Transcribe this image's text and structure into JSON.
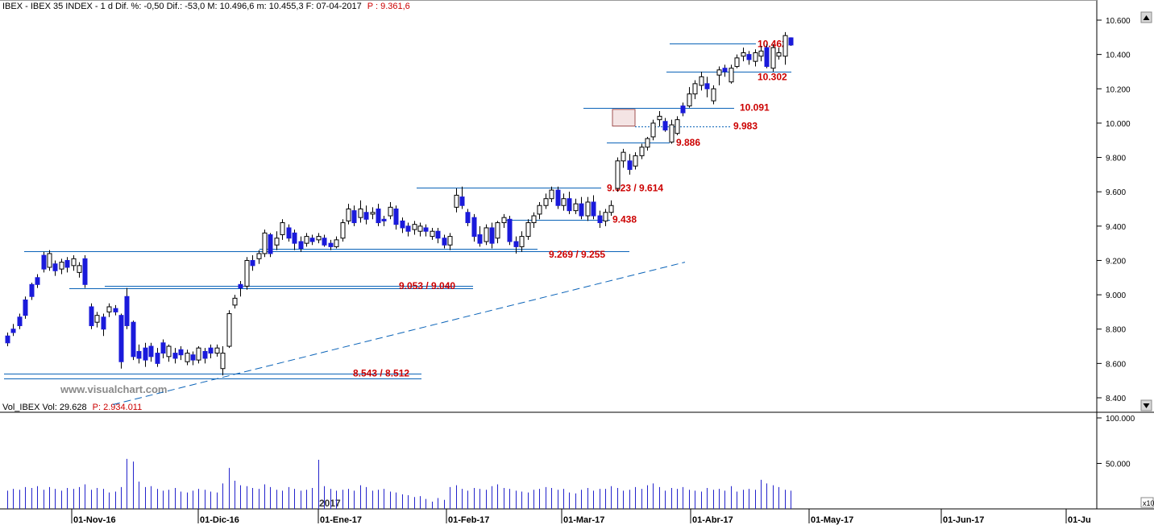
{
  "header": {
    "main": "IBEX - IBEX 35 INDEX - 1 d Dif. %: -0,50 Dif.: -53,0 M: 10.496,6 m: 10.455,3 F: 07-04-2017",
    "main_p": "P : 9.361,6",
    "vol": "Vol_IBEX Vol: 29.628",
    "vol_p": "P: 2.934.011"
  },
  "watermark": "www.visualchart.com",
  "year_marker": "2017",
  "scale_button": "x10",
  "colors": {
    "up": "#ffffff",
    "down": "#1a1adb",
    "line": "#0a63b8",
    "label": "#cc0000",
    "volume": "#2222cc"
  },
  "chart_data": {
    "type": "candlestick",
    "title": "IBEX - IBEX 35 INDEX - 1 d",
    "price_axis": {
      "ticks": [
        "10.600",
        "10.400",
        "10.200",
        "10.000",
        "9.800",
        "9.600",
        "9.400",
        "9.200",
        "9.000",
        "8.800",
        "8.600",
        "8.400"
      ],
      "range": [
        8400,
        10600
      ]
    },
    "volume_axis": {
      "ticks": [
        "100.000",
        "50.000"
      ],
      "range": [
        0,
        100000
      ]
    },
    "date_axis": [
      "01-Nov-16",
      "01-Dic-16",
      "01-Ene-17",
      "01-Feb-17",
      "01-Mar-17",
      "01-Abr-17",
      "01-May-17",
      "01-Jun-17",
      "01-Ju"
    ],
    "candles": [
      [
        8760,
        8720,
        8780,
        8700
      ],
      [
        8800,
        8780,
        8830,
        8760
      ],
      [
        8870,
        8820,
        8890,
        8800
      ],
      [
        8970,
        8880,
        8990,
        8860
      ],
      [
        9060,
        8990,
        9070,
        8970
      ],
      [
        9100,
        9060,
        9120,
        9040
      ],
      [
        9230,
        9150,
        9250,
        9130
      ],
      [
        9160,
        9240,
        9260,
        9140
      ],
      [
        9180,
        9140,
        9200,
        9110
      ],
      [
        9150,
        9190,
        9210,
        9120
      ],
      [
        9200,
        9160,
        9220,
        9130
      ],
      [
        9170,
        9210,
        9230,
        9140
      ],
      [
        9130,
        9170,
        9190,
        9100
      ],
      [
        9210,
        9060,
        9230,
        9040
      ],
      [
        8930,
        8820,
        8950,
        8800
      ],
      [
        8840,
        8880,
        8900,
        8810
      ],
      [
        8870,
        8800,
        8890,
        8760
      ],
      [
        8900,
        8930,
        8950,
        8870
      ],
      [
        8920,
        8900,
        8940,
        8880
      ],
      [
        8880,
        8610,
        8890,
        8570
      ],
      [
        8990,
        8820,
        9040,
        8800
      ],
      [
        8840,
        8640,
        8850,
        8620
      ],
      [
        8670,
        8630,
        8710,
        8600
      ],
      [
        8690,
        8620,
        8720,
        8580
      ],
      [
        8700,
        8640,
        8720,
        8610
      ],
      [
        8660,
        8600,
        8690,
        8580
      ],
      [
        8720,
        8660,
        8740,
        8630
      ],
      [
        8640,
        8700,
        8710,
        8610
      ],
      [
        8660,
        8630,
        8690,
        8600
      ],
      [
        8680,
        8650,
        8700,
        8620
      ],
      [
        8610,
        8660,
        8680,
        8590
      ],
      [
        8650,
        8620,
        8670,
        8590
      ],
      [
        8620,
        8690,
        8700,
        8600
      ],
      [
        8670,
        8630,
        8690,
        8600
      ],
      [
        8690,
        8660,
        8710,
        8630
      ],
      [
        8660,
        8690,
        8710,
        8640
      ],
      [
        8570,
        8660,
        8700,
        8530
      ],
      [
        8700,
        8890,
        8910,
        8690
      ],
      [
        8940,
        8980,
        9000,
        8920
      ],
      [
        9060,
        9040,
        9080,
        8990
      ],
      [
        9050,
        9200,
        9220,
        9030
      ],
      [
        9200,
        9170,
        9230,
        9140
      ],
      [
        9210,
        9240,
        9260,
        9180
      ],
      [
        9240,
        9360,
        9380,
        9220
      ],
      [
        9350,
        9240,
        9360,
        9220
      ],
      [
        9290,
        9330,
        9370,
        9260
      ],
      [
        9350,
        9420,
        9440,
        9320
      ],
      [
        9390,
        9330,
        9410,
        9310
      ],
      [
        9360,
        9300,
        9380,
        9260
      ],
      [
        9310,
        9270,
        9340,
        9250
      ],
      [
        9300,
        9340,
        9360,
        9280
      ],
      [
        9330,
        9310,
        9350,
        9290
      ],
      [
        9320,
        9340,
        9360,
        9300
      ],
      [
        9330,
        9290,
        9350,
        9280
      ],
      [
        9300,
        9280,
        9320,
        9260
      ],
      [
        9280,
        9320,
        9340,
        9270
      ],
      [
        9330,
        9420,
        9440,
        9310
      ],
      [
        9430,
        9500,
        9530,
        9410
      ],
      [
        9490,
        9420,
        9520,
        9400
      ],
      [
        9450,
        9500,
        9550,
        9420
      ],
      [
        9480,
        9440,
        9520,
        9410
      ],
      [
        9470,
        9480,
        9510,
        9440
      ],
      [
        9500,
        9420,
        9530,
        9400
      ],
      [
        9440,
        9430,
        9460,
        9400
      ],
      [
        9460,
        9510,
        9540,
        9440
      ],
      [
        9500,
        9410,
        9520,
        9380
      ],
      [
        9430,
        9390,
        9450,
        9360
      ],
      [
        9400,
        9370,
        9420,
        9340
      ],
      [
        9380,
        9410,
        9430,
        9350
      ],
      [
        9370,
        9400,
        9420,
        9340
      ],
      [
        9390,
        9370,
        9410,
        9340
      ],
      [
        9340,
        9370,
        9390,
        9320
      ],
      [
        9370,
        9330,
        9390,
        9300
      ],
      [
        9330,
        9290,
        9350,
        9270
      ],
      [
        9290,
        9340,
        9360,
        9260
      ],
      [
        9510,
        9580,
        9620,
        9480
      ],
      [
        9570,
        9520,
        9630,
        9500
      ],
      [
        9480,
        9420,
        9500,
        9400
      ],
      [
        9450,
        9340,
        9470,
        9310
      ],
      [
        9350,
        9300,
        9400,
        9280
      ],
      [
        9310,
        9390,
        9410,
        9290
      ],
      [
        9390,
        9300,
        9420,
        9270
      ],
      [
        9330,
        9420,
        9430,
        9300
      ],
      [
        9420,
        9450,
        9470,
        9390
      ],
      [
        9440,
        9310,
        9460,
        9290
      ],
      [
        9310,
        9280,
        9340,
        9240
      ],
      [
        9280,
        9340,
        9370,
        9250
      ],
      [
        9340,
        9420,
        9440,
        9320
      ],
      [
        9420,
        9460,
        9480,
        9390
      ],
      [
        9470,
        9520,
        9540,
        9440
      ],
      [
        9520,
        9560,
        9590,
        9500
      ],
      [
        9560,
        9610,
        9630,
        9540
      ],
      [
        9610,
        9520,
        9630,
        9500
      ],
      [
        9520,
        9560,
        9590,
        9490
      ],
      [
        9560,
        9490,
        9600,
        9470
      ],
      [
        9490,
        9530,
        9560,
        9470
      ],
      [
        9530,
        9460,
        9570,
        9440
      ],
      [
        9460,
        9540,
        9570,
        9430
      ],
      [
        9540,
        9460,
        9580,
        9440
      ],
      [
        9460,
        9420,
        9490,
        9390
      ],
      [
        9430,
        9480,
        9500,
        9400
      ],
      [
        9480,
        9520,
        9550,
        9460
      ],
      [
        9620,
        9780,
        9800,
        9600
      ],
      [
        9780,
        9830,
        9850,
        9740
      ],
      [
        9780,
        9730,
        9820,
        9700
      ],
      [
        9750,
        9810,
        9830,
        9730
      ],
      [
        9810,
        9860,
        9880,
        9790
      ],
      [
        9860,
        9910,
        9920,
        9840
      ],
      [
        9920,
        10000,
        10020,
        9900
      ],
      [
        10020,
        10040,
        10070,
        9980
      ],
      [
        10010,
        9960,
        10030,
        9950
      ],
      [
        9890,
        9990,
        10020,
        9880
      ],
      [
        9940,
        10020,
        10040,
        9930
      ],
      [
        10100,
        10060,
        10120,
        10040
      ],
      [
        10100,
        10170,
        10210,
        10090
      ],
      [
        10170,
        10230,
        10250,
        10140
      ],
      [
        10220,
        10270,
        10300,
        10190
      ],
      [
        10230,
        10200,
        10270,
        10150
      ],
      [
        10130,
        10200,
        10220,
        10110
      ],
      [
        10280,
        10310,
        10330,
        10220
      ],
      [
        10320,
        10300,
        10340,
        10270
      ],
      [
        10240,
        10320,
        10340,
        10230
      ],
      [
        10330,
        10380,
        10400,
        10320
      ],
      [
        10390,
        10410,
        10440,
        10360
      ],
      [
        10400,
        10370,
        10420,
        10340
      ],
      [
        10360,
        10410,
        10430,
        10330
      ],
      [
        10390,
        10420,
        10450,
        10360
      ],
      [
        10440,
        10330,
        10460,
        10320
      ],
      [
        10320,
        10440,
        10460,
        10300
      ],
      [
        10390,
        10410,
        10440,
        10370
      ],
      [
        10390,
        10510,
        10530,
        10340
      ],
      [
        10497,
        10455,
        10500,
        10450
      ]
    ],
    "volume": [
      20000,
      22000,
      21000,
      24000,
      23000,
      25000,
      21000,
      24000,
      22000,
      20000,
      23000,
      22000,
      24000,
      27000,
      21000,
      23000,
      22000,
      18000,
      19000,
      24000,
      55000,
      52000,
      30000,
      24000,
      25000,
      22000,
      20000,
      21000,
      23000,
      19000,
      18000,
      20000,
      22000,
      21000,
      19000,
      18000,
      28000,
      45000,
      31000,
      26000,
      25000,
      23000,
      22000,
      27000,
      24000,
      21000,
      20000,
      24000,
      22000,
      20000,
      21000,
      23000,
      54000,
      25000,
      22000,
      20000,
      21000,
      22000,
      20000,
      26000,
      24000,
      20000,
      21000,
      22000,
      19000,
      18000,
      16000,
      15000,
      13000,
      14000,
      11000,
      8000,
      12000,
      10000,
      24000,
      26000,
      22000,
      20000,
      23000,
      22000,
      21000,
      25000,
      27000,
      23000,
      22000,
      20000,
      19000,
      18000,
      21000,
      22000,
      24000,
      23000,
      21000,
      22000,
      18000,
      17000,
      21000,
      23000,
      20000,
      22000,
      22000,
      25000,
      23000,
      20000,
      21000,
      24000,
      22000,
      26000,
      28000,
      24000,
      20000,
      23000,
      22000,
      24000,
      21000,
      20000,
      19000,
      23000,
      21000,
      22000,
      20000,
      25000,
      19000,
      21000,
      22000,
      21000,
      32000,
      28000,
      26000,
      24000,
      21000,
      20000
    ],
    "levels": [
      {
        "label": "10.462",
        "value": 10462
      },
      {
        "label": "10.302",
        "value": 10302
      },
      {
        "label": "10.091",
        "value": 10091
      },
      {
        "label": "9.983",
        "value": 9983
      },
      {
        "label": "9.886",
        "value": 9886
      },
      {
        "label": "9.623 / 9.614",
        "value": 9623
      },
      {
        "label": "9.438",
        "value": 9438
      },
      {
        "label": "9.269 / 9.255",
        "value": 9269
      },
      {
        "label": "9.053 / 9.040",
        "value": 9053
      },
      {
        "label": "8.543 / 8.512",
        "value": 8543
      }
    ],
    "trendline": {
      "start_value": 8360,
      "end_value": 9190
    }
  }
}
